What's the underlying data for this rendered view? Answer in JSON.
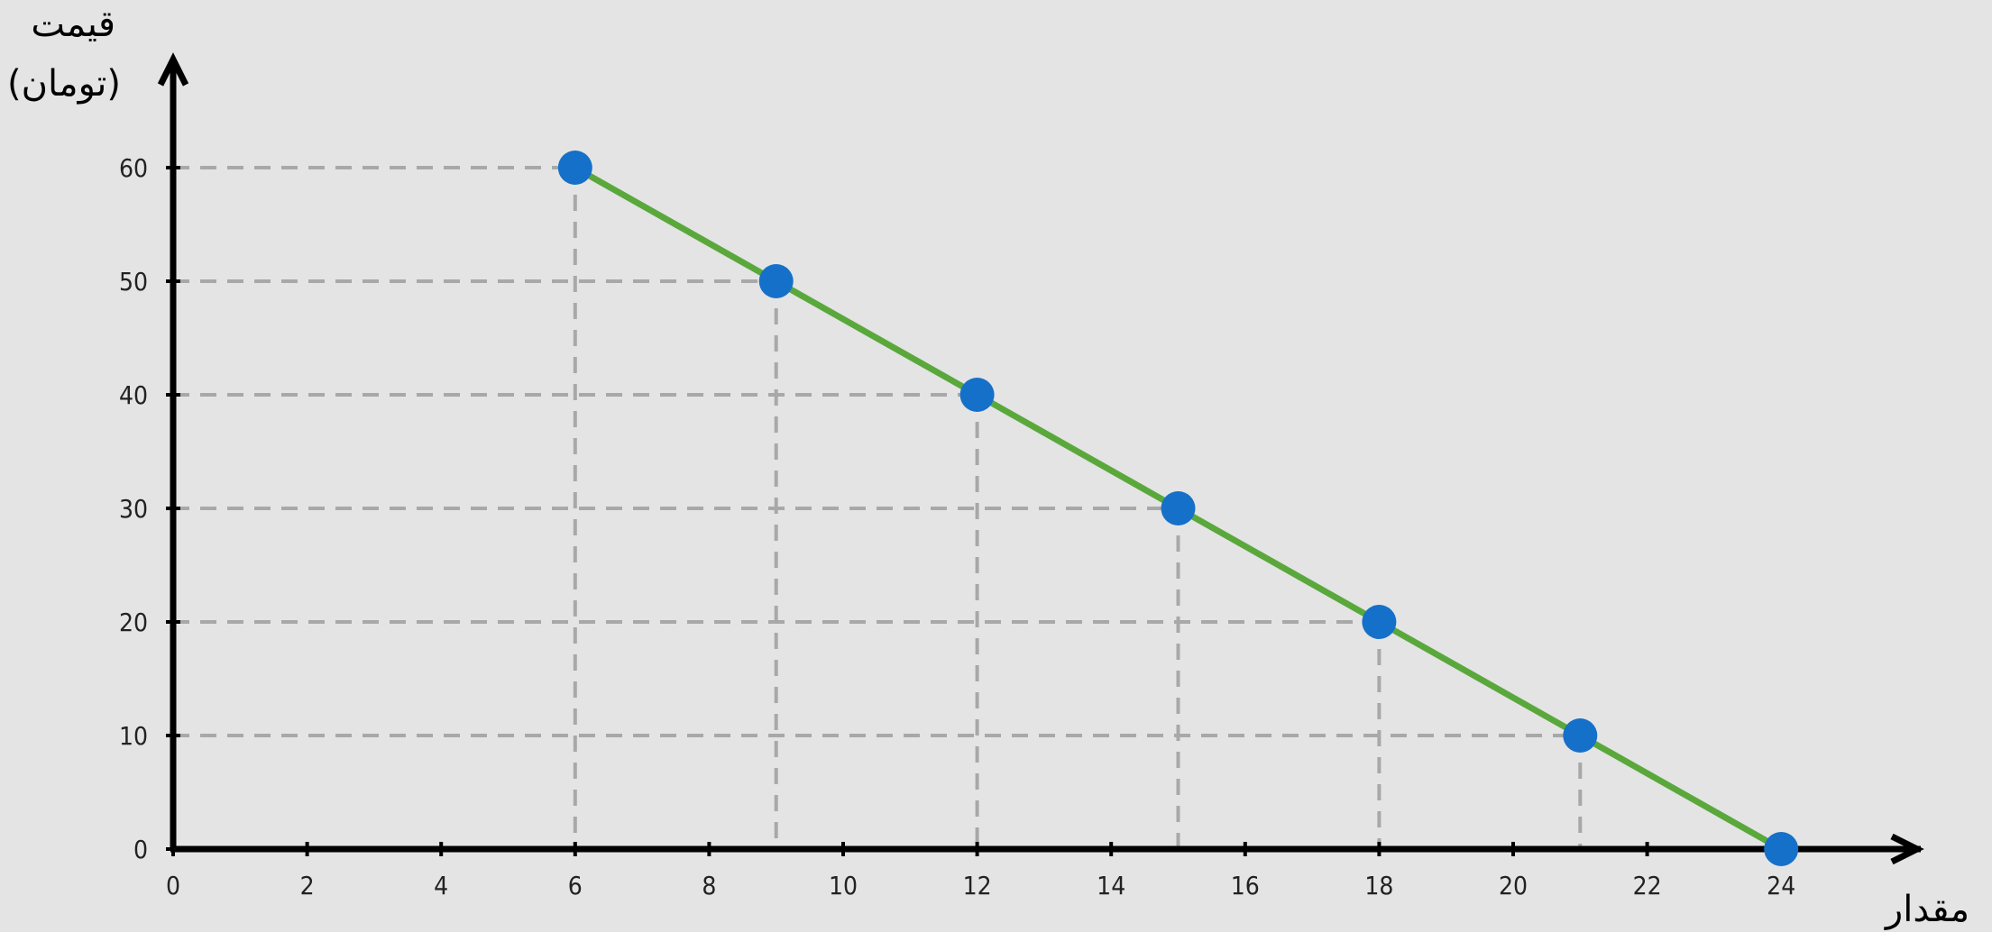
{
  "chart_data": {
    "type": "line",
    "title": "",
    "xlabel": "مقدار",
    "ylabel": [
      "قیمت",
      "(تومان)"
    ],
    "xlim": [
      0,
      26
    ],
    "ylim": [
      0,
      60
    ],
    "x_ticks": [
      0,
      2,
      4,
      6,
      8,
      10,
      12,
      14,
      16,
      18,
      20,
      22,
      24
    ],
    "y_ticks": [
      0,
      10,
      20,
      30,
      40,
      50,
      60
    ],
    "grid": "dashed guide lines from each point to both axes",
    "series": [
      {
        "x": [
          6,
          9,
          12,
          15,
          18,
          21,
          24
        ],
        "y": [
          60,
          50,
          40,
          30,
          20,
          10,
          0
        ]
      }
    ],
    "colors": {
      "line": "#5aa83c",
      "points": "#1570c9",
      "guides": "#a8a8a8",
      "axes": "#000000",
      "background": "#e4e4e4"
    }
  }
}
